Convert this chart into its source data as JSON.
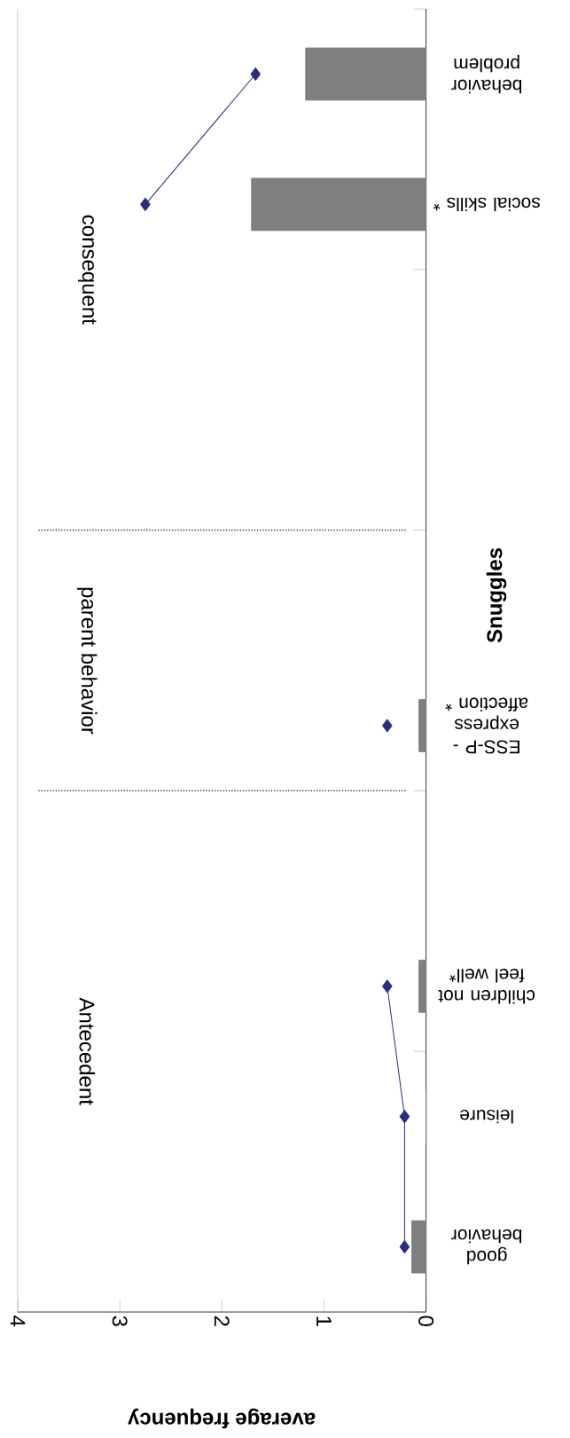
{
  "chart_data": {
    "type": "bar",
    "orientation": "horizontal",
    "xlabel": "average frequency",
    "ylabel": "Snuggles",
    "categories": [
      "behavior problem",
      "social skills *",
      null,
      null,
      null,
      "ESS-P - express affection *",
      null,
      "children not feel well*",
      "leisure",
      "good behavior"
    ],
    "series": [
      {
        "color": "#7f7f7f",
        "values": [
          1.18,
          1.71,
          null,
          null,
          null,
          0.07,
          null,
          0.07,
          0,
          0.14
        ]
      },
      {
        "type": "line",
        "color": "#2b2e7e",
        "marker": "diamond",
        "values": [
          1.67,
          2.75,
          null,
          null,
          null,
          0.38,
          null,
          0.38,
          0.21,
          0.21
        ]
      }
    ],
    "xlim": [
      4,
      0
    ],
    "xticks": [
      0,
      1,
      2,
      3,
      4
    ],
    "annotations": [
      "consequent",
      "parent behavior",
      "Antecedent"
    ]
  }
}
